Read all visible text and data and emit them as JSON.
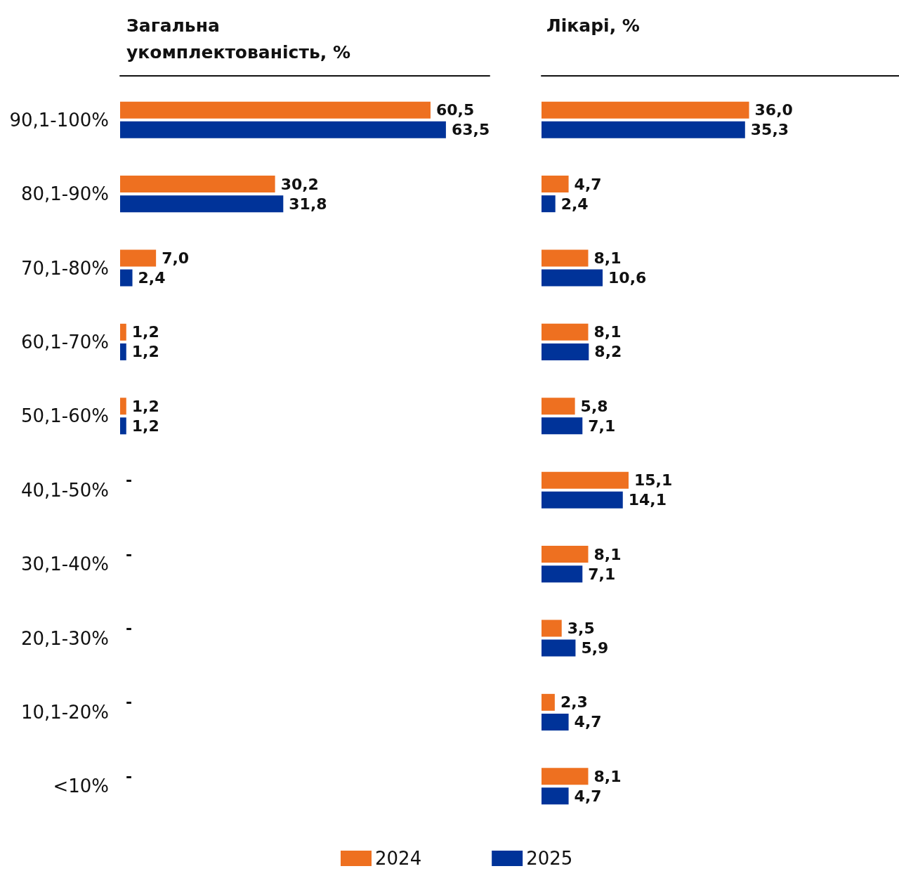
{
  "chart_data": [
    {
      "type": "bar",
      "orientation": "horizontal",
      "title": "Загальна\nукомплектованість, %",
      "categories": [
        "90,1-100%",
        "80,1-90%",
        "70,1-80%",
        "60,1-70%",
        "50,1-60%",
        "40,1-50%",
        "30,1-40%",
        "20,1-30%",
        "10,1-20%",
        "<10%"
      ],
      "xlim": [
        0,
        72
      ],
      "tick_labels": "y",
      "legend": false,
      "series": [
        {
          "color": "#ee7020",
          "values": [
            60.5,
            30.2,
            7.0,
            1.2,
            1.2,
            0,
            0,
            0,
            0,
            0
          ],
          "value_labels": [
            "60,5",
            "30,2",
            "7,0",
            "1,2",
            "1,2",
            "-",
            "-",
            "-",
            "-",
            "-"
          ]
        },
        {
          "color": "#003399",
          "values": [
            63.5,
            31.8,
            2.4,
            1.2,
            1.2,
            0,
            0,
            0,
            0,
            0
          ],
          "value_labels": [
            "63,5",
            "31,8",
            "2,4",
            "1,2",
            "1,2",
            null,
            null,
            null,
            null,
            null
          ]
        }
      ]
    },
    {
      "type": "bar",
      "orientation": "horizontal",
      "title": "Лікарі, %",
      "categories": [
        null,
        null,
        null,
        null,
        null,
        null,
        null,
        null,
        null,
        null
      ],
      "xlim": [
        0,
        62
      ],
      "tick_labels": false,
      "legend": "bottom",
      "series": [
        {
          "name": "2024",
          "color": "#ee7020",
          "values": [
            36.0,
            4.7,
            8.1,
            8.1,
            5.8,
            15.1,
            8.1,
            3.5,
            2.3,
            8.1
          ],
          "value_labels": [
            "36,0",
            "4,7",
            "8,1",
            "8,1",
            "5,8",
            "15,1",
            "8,1",
            "3,5",
            "2,3",
            "8,1"
          ]
        },
        {
          "name": "2025",
          "color": "#003399",
          "values": [
            35.3,
            2.4,
            10.6,
            8.2,
            7.1,
            14.1,
            7.1,
            5.9,
            4.7,
            4.7
          ],
          "value_labels": [
            "35,3",
            "2,4",
            "10,6",
            "8,2",
            "7,1",
            "14,1",
            "7,1",
            "5,9",
            "4,7",
            "4,7"
          ]
        }
      ]
    }
  ]
}
